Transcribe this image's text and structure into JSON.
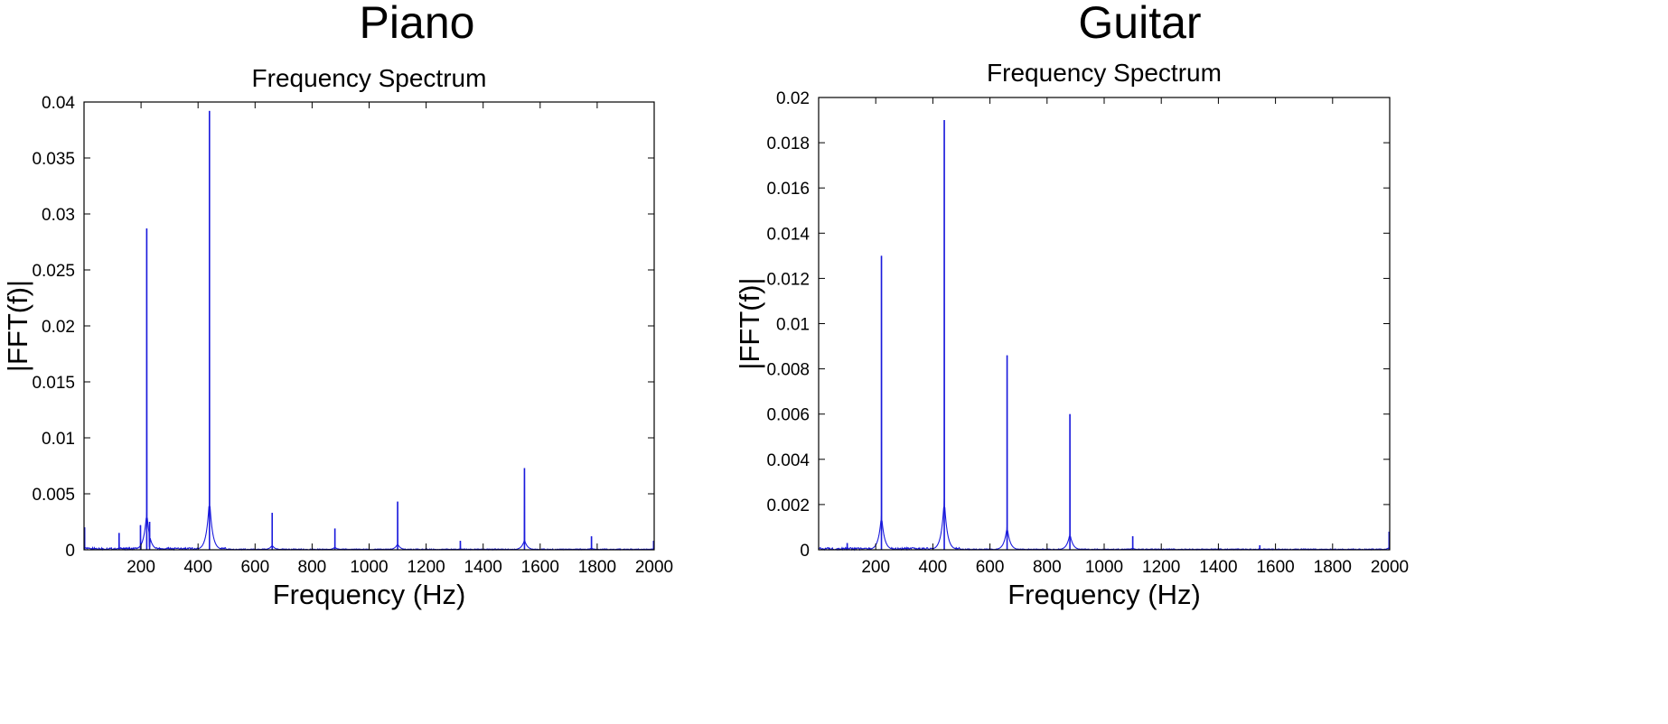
{
  "colors": {
    "series": "#1a1adc",
    "axes": "#000000",
    "background": "#ffffff"
  },
  "chart_data": [
    {
      "type": "line",
      "heading": "Piano",
      "title": "Frequency Spectrum",
      "xlabel": "Frequency (Hz)",
      "ylabel": "|FFT(f)|",
      "xlim": [
        0,
        2000
      ],
      "ylim": [
        0,
        0.04
      ],
      "xticks": [
        200,
        400,
        600,
        800,
        1000,
        1200,
        1400,
        1600,
        1800,
        2000
      ],
      "xtick_labels": [
        "200",
        "400",
        "600",
        "800",
        "1000",
        "1200",
        "1400",
        "1600",
        "1800",
        "2000"
      ],
      "yticks": [
        0,
        0.005,
        0.01,
        0.015,
        0.02,
        0.025,
        0.03,
        0.035,
        0.04
      ],
      "ytick_labels": [
        "0",
        "0.005",
        "0.01",
        "0.015",
        "0.02",
        "0.025",
        "0.03",
        "0.035",
        "0.04"
      ],
      "grid": false,
      "peaks": [
        {
          "x": 2,
          "y": 0.002
        },
        {
          "x": 123,
          "y": 0.0015
        },
        {
          "x": 198,
          "y": 0.0022
        },
        {
          "x": 220,
          "y": 0.0287
        },
        {
          "x": 230,
          "y": 0.0025
        },
        {
          "x": 440,
          "y": 0.0392
        },
        {
          "x": 660,
          "y": 0.0033
        },
        {
          "x": 880,
          "y": 0.0019
        },
        {
          "x": 1100,
          "y": 0.0043
        },
        {
          "x": 1320,
          "y": 0.0008
        },
        {
          "x": 1545,
          "y": 0.0073
        },
        {
          "x": 1780,
          "y": 0.0012
        },
        {
          "x": 1998,
          "y": 0.0008
        }
      ]
    },
    {
      "type": "line",
      "heading": "Guitar",
      "title": "Frequency Spectrum",
      "xlabel": "Frequency (Hz)",
      "ylabel": "|FFT(f)|",
      "xlim": [
        0,
        2000
      ],
      "ylim": [
        0,
        0.02
      ],
      "xticks": [
        200,
        400,
        600,
        800,
        1000,
        1200,
        1400,
        1600,
        1800,
        2000
      ],
      "xtick_labels": [
        "200",
        "400",
        "600",
        "800",
        "1000",
        "1200",
        "1400",
        "1600",
        "1800",
        "2000"
      ],
      "yticks": [
        0,
        0.002,
        0.004,
        0.006,
        0.008,
        0.01,
        0.012,
        0.014,
        0.016,
        0.018,
        0.02
      ],
      "ytick_labels": [
        "0",
        "0.002",
        "0.004",
        "0.006",
        "0.008",
        "0.01",
        "0.012",
        "0.014",
        "0.016",
        "0.018",
        "0.02"
      ],
      "grid": false,
      "peaks": [
        {
          "x": 100,
          "y": 0.0003
        },
        {
          "x": 220,
          "y": 0.013
        },
        {
          "x": 440,
          "y": 0.019
        },
        {
          "x": 660,
          "y": 0.0086
        },
        {
          "x": 880,
          "y": 0.006
        },
        {
          "x": 1100,
          "y": 0.0006
        },
        {
          "x": 1545,
          "y": 0.0002
        },
        {
          "x": 1998,
          "y": 0.0008
        }
      ]
    }
  ]
}
